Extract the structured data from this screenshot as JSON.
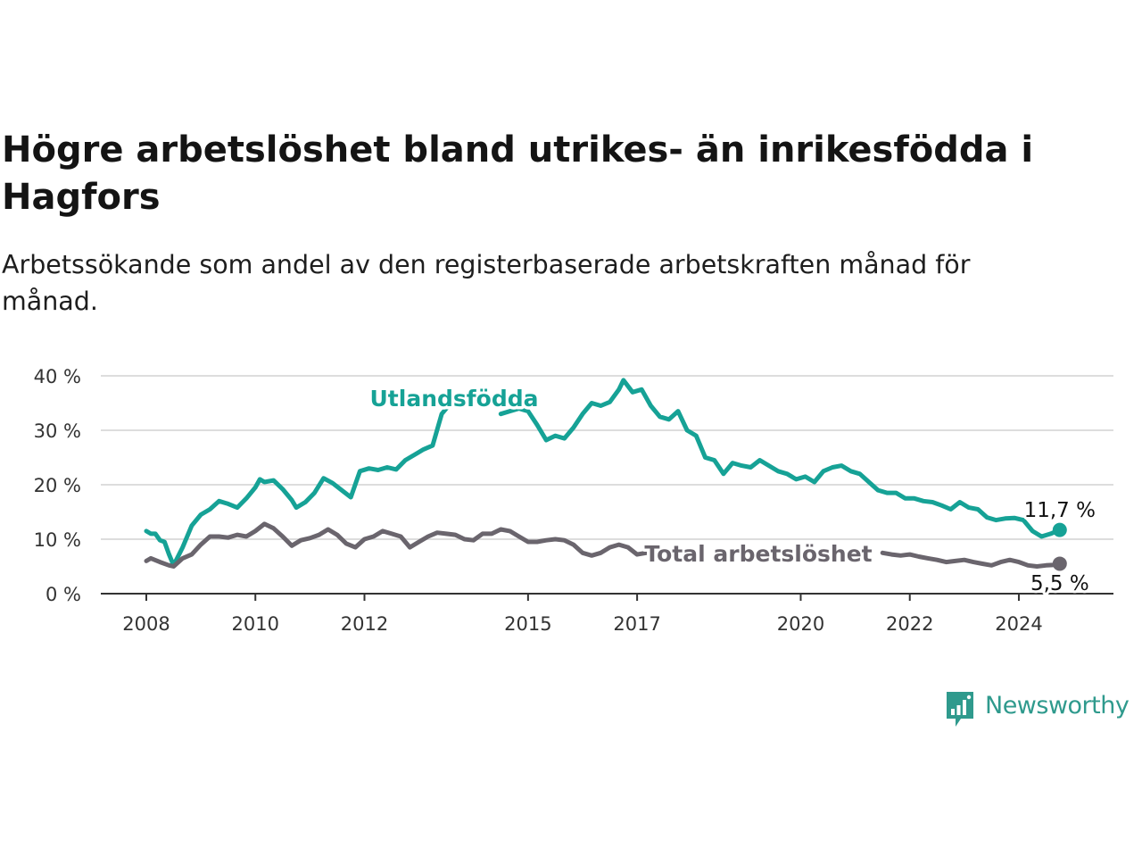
{
  "title": "Högre arbetslöshet bland utrikes- än inrikesfödda i Hagfors",
  "subtitle": "Arbetssökande som andel av den registerbaserade arbetskraften månad för månad.",
  "brand": {
    "name": "Newsworthy",
    "icon": "newsworthy-logo-icon",
    "color": "#2f9a8d"
  },
  "colors": {
    "utlandsfodda": "#16a296",
    "total": "#6a656d",
    "grid": "#dddddd",
    "axis": "#333333"
  },
  "chart_data": {
    "type": "line",
    "title": "Högre arbetslöshet bland utrikes- än inrikesfödda i Hagfors",
    "subtitle": "Arbetssökande som andel av den registerbaserade arbetskraften månad för månad.",
    "xlabel": "",
    "ylabel": "",
    "x_ticks": [
      "2008",
      "2010",
      "2012",
      "2015",
      "2017",
      "2020",
      "2022",
      "2024"
    ],
    "y_ticks": [
      "0 %",
      "10 %",
      "20 %",
      "30 %",
      "40 %"
    ],
    "xlim": [
      "2008-01",
      "2024-12"
    ],
    "ylim": [
      0,
      40
    ],
    "grid": true,
    "series": [
      {
        "name": "Utlandsfödda",
        "color": "#16a296",
        "end_label": "11,7 %",
        "points": [
          [
            "2008-01",
            11.5
          ],
          [
            "2008-02",
            11.0
          ],
          [
            "2008-03",
            11.0
          ],
          [
            "2008-04",
            9.8
          ],
          [
            "2008-05",
            9.5
          ],
          [
            "2008-06",
            7.2
          ],
          [
            "2008-07",
            5.2
          ],
          [
            "2008-09",
            8.5
          ],
          [
            "2008-11",
            12.5
          ],
          [
            "2009-01",
            14.5
          ],
          [
            "2009-03",
            15.5
          ],
          [
            "2009-05",
            17.0
          ],
          [
            "2009-07",
            16.5
          ],
          [
            "2009-09",
            15.8
          ],
          [
            "2009-11",
            17.5
          ],
          [
            "2010-01",
            19.5
          ],
          [
            "2010-02",
            21.0
          ],
          [
            "2010-03",
            20.5
          ],
          [
            "2010-05",
            20.8
          ],
          [
            "2010-07",
            19.2
          ],
          [
            "2010-09",
            17.2
          ],
          [
            "2010-10",
            15.8
          ],
          [
            "2010-12",
            16.8
          ],
          [
            "2011-02",
            18.5
          ],
          [
            "2011-04",
            21.2
          ],
          [
            "2011-06",
            20.3
          ],
          [
            "2011-08",
            19.0
          ],
          [
            "2011-10",
            17.7
          ],
          [
            "2011-12",
            22.5
          ],
          [
            "2012-02",
            23.0
          ],
          [
            "2012-04",
            22.7
          ],
          [
            "2012-06",
            23.2
          ],
          [
            "2012-08",
            22.8
          ],
          [
            "2012-10",
            24.5
          ],
          [
            "2012-12",
            25.5
          ],
          [
            "2013-02",
            26.5
          ],
          [
            "2013-04",
            27.2
          ],
          [
            "2013-06",
            33.0
          ],
          [
            "2013-08",
            35.0
          ],
          [
            "2014-07",
            33.0
          ],
          [
            "2014-09",
            33.5
          ],
          [
            "2014-11",
            34.0
          ],
          [
            "2015-01",
            33.5
          ],
          [
            "2015-03",
            31.0
          ],
          [
            "2015-05",
            28.2
          ],
          [
            "2015-07",
            29.0
          ],
          [
            "2015-09",
            28.5
          ],
          [
            "2015-11",
            30.5
          ],
          [
            "2016-01",
            33.0
          ],
          [
            "2016-03",
            35.0
          ],
          [
            "2016-05",
            34.5
          ],
          [
            "2016-07",
            35.2
          ],
          [
            "2016-09",
            37.5
          ],
          [
            "2016-10",
            39.2
          ],
          [
            "2016-12",
            37.0
          ],
          [
            "2017-02",
            37.5
          ],
          [
            "2017-04",
            34.5
          ],
          [
            "2017-06",
            32.5
          ],
          [
            "2017-08",
            32.0
          ],
          [
            "2017-10",
            33.5
          ],
          [
            "2017-12",
            30.0
          ],
          [
            "2018-02",
            29.0
          ],
          [
            "2018-04",
            25.0
          ],
          [
            "2018-06",
            24.5
          ],
          [
            "2018-08",
            22.0
          ],
          [
            "2018-10",
            24.0
          ],
          [
            "2018-12",
            23.5
          ],
          [
            "2019-02",
            23.2
          ],
          [
            "2019-04",
            24.5
          ],
          [
            "2019-06",
            23.5
          ],
          [
            "2019-08",
            22.5
          ],
          [
            "2019-10",
            22.0
          ],
          [
            "2019-12",
            21.0
          ],
          [
            "2020-02",
            21.5
          ],
          [
            "2020-04",
            20.5
          ],
          [
            "2020-06",
            22.5
          ],
          [
            "2020-08",
            23.2
          ],
          [
            "2020-10",
            23.5
          ],
          [
            "2020-12",
            22.5
          ],
          [
            "2021-02",
            22.0
          ],
          [
            "2021-04",
            20.5
          ],
          [
            "2021-06",
            19.0
          ],
          [
            "2021-08",
            18.5
          ],
          [
            "2021-10",
            18.5
          ],
          [
            "2021-12",
            17.5
          ],
          [
            "2022-02",
            17.5
          ],
          [
            "2022-04",
            17.0
          ],
          [
            "2022-06",
            16.8
          ],
          [
            "2022-08",
            16.2
          ],
          [
            "2022-10",
            15.5
          ],
          [
            "2022-12",
            16.8
          ],
          [
            "2023-02",
            15.8
          ],
          [
            "2023-04",
            15.5
          ],
          [
            "2023-06",
            14.0
          ],
          [
            "2023-08",
            13.5
          ],
          [
            "2023-10",
            13.8
          ],
          [
            "2023-12",
            13.9
          ],
          [
            "2024-02",
            13.5
          ],
          [
            "2024-04",
            11.5
          ],
          [
            "2024-06",
            10.5
          ],
          [
            "2024-08",
            11.0
          ],
          [
            "2024-10",
            11.7
          ]
        ]
      },
      {
        "name": "Total arbetslöshet",
        "color": "#6a656d",
        "end_label": "5,5 %",
        "points": [
          [
            "2008-01",
            6.0
          ],
          [
            "2008-02",
            6.5
          ],
          [
            "2008-04",
            5.8
          ],
          [
            "2008-06",
            5.2
          ],
          [
            "2008-07",
            5.0
          ],
          [
            "2008-09",
            6.5
          ],
          [
            "2008-11",
            7.2
          ],
          [
            "2009-01",
            9.0
          ],
          [
            "2009-03",
            10.5
          ],
          [
            "2009-05",
            10.5
          ],
          [
            "2009-07",
            10.3
          ],
          [
            "2009-09",
            10.8
          ],
          [
            "2009-11",
            10.5
          ],
          [
            "2010-01",
            11.5
          ],
          [
            "2010-03",
            12.8
          ],
          [
            "2010-05",
            12.0
          ],
          [
            "2010-07",
            10.5
          ],
          [
            "2010-09",
            8.8
          ],
          [
            "2010-11",
            9.8
          ],
          [
            "2011-01",
            10.2
          ],
          [
            "2011-03",
            10.8
          ],
          [
            "2011-05",
            11.8
          ],
          [
            "2011-07",
            10.8
          ],
          [
            "2011-09",
            9.2
          ],
          [
            "2011-11",
            8.5
          ],
          [
            "2012-01",
            10.0
          ],
          [
            "2012-03",
            10.5
          ],
          [
            "2012-05",
            11.5
          ],
          [
            "2012-07",
            11.0
          ],
          [
            "2012-09",
            10.5
          ],
          [
            "2012-11",
            8.5
          ],
          [
            "2013-01",
            9.5
          ],
          [
            "2013-03",
            10.5
          ],
          [
            "2013-05",
            11.2
          ],
          [
            "2013-07",
            11.0
          ],
          [
            "2013-09",
            10.8
          ],
          [
            "2013-11",
            10.0
          ],
          [
            "2014-01",
            9.8
          ],
          [
            "2014-03",
            11.0
          ],
          [
            "2014-05",
            11.0
          ],
          [
            "2014-07",
            11.8
          ],
          [
            "2014-09",
            11.5
          ],
          [
            "2014-11",
            10.5
          ],
          [
            "2015-01",
            9.5
          ],
          [
            "2015-03",
            9.5
          ],
          [
            "2015-05",
            9.8
          ],
          [
            "2015-07",
            10.0
          ],
          [
            "2015-09",
            9.8
          ],
          [
            "2015-11",
            9.0
          ],
          [
            "2016-01",
            7.5
          ],
          [
            "2016-03",
            7.0
          ],
          [
            "2016-05",
            7.5
          ],
          [
            "2016-07",
            8.5
          ],
          [
            "2016-09",
            9.0
          ],
          [
            "2016-11",
            8.5
          ],
          [
            "2017-01",
            7.2
          ],
          [
            "2017-03",
            7.5
          ],
          [
            "2017-05",
            8.0
          ],
          [
            "2017-06",
            8.5
          ],
          [
            "2021-07",
            7.5
          ],
          [
            "2021-09",
            7.2
          ],
          [
            "2021-11",
            7.0
          ],
          [
            "2022-01",
            7.2
          ],
          [
            "2022-03",
            6.8
          ],
          [
            "2022-05",
            6.5
          ],
          [
            "2022-07",
            6.2
          ],
          [
            "2022-09",
            5.8
          ],
          [
            "2022-11",
            6.0
          ],
          [
            "2023-01",
            6.2
          ],
          [
            "2023-03",
            5.8
          ],
          [
            "2023-05",
            5.5
          ],
          [
            "2023-07",
            5.2
          ],
          [
            "2023-09",
            5.8
          ],
          [
            "2023-11",
            6.2
          ],
          [
            "2024-01",
            5.8
          ],
          [
            "2024-03",
            5.2
          ],
          [
            "2024-05",
            5.0
          ],
          [
            "2024-07",
            5.2
          ],
          [
            "2024-09",
            5.3
          ],
          [
            "2024-10",
            5.5
          ]
        ]
      }
    ],
    "annotations": [
      {
        "series": "Utlandsfödda",
        "text": "Utlandsfödda"
      },
      {
        "series": "Total arbetslöshet",
        "text": "Total arbetslöshet"
      }
    ]
  }
}
